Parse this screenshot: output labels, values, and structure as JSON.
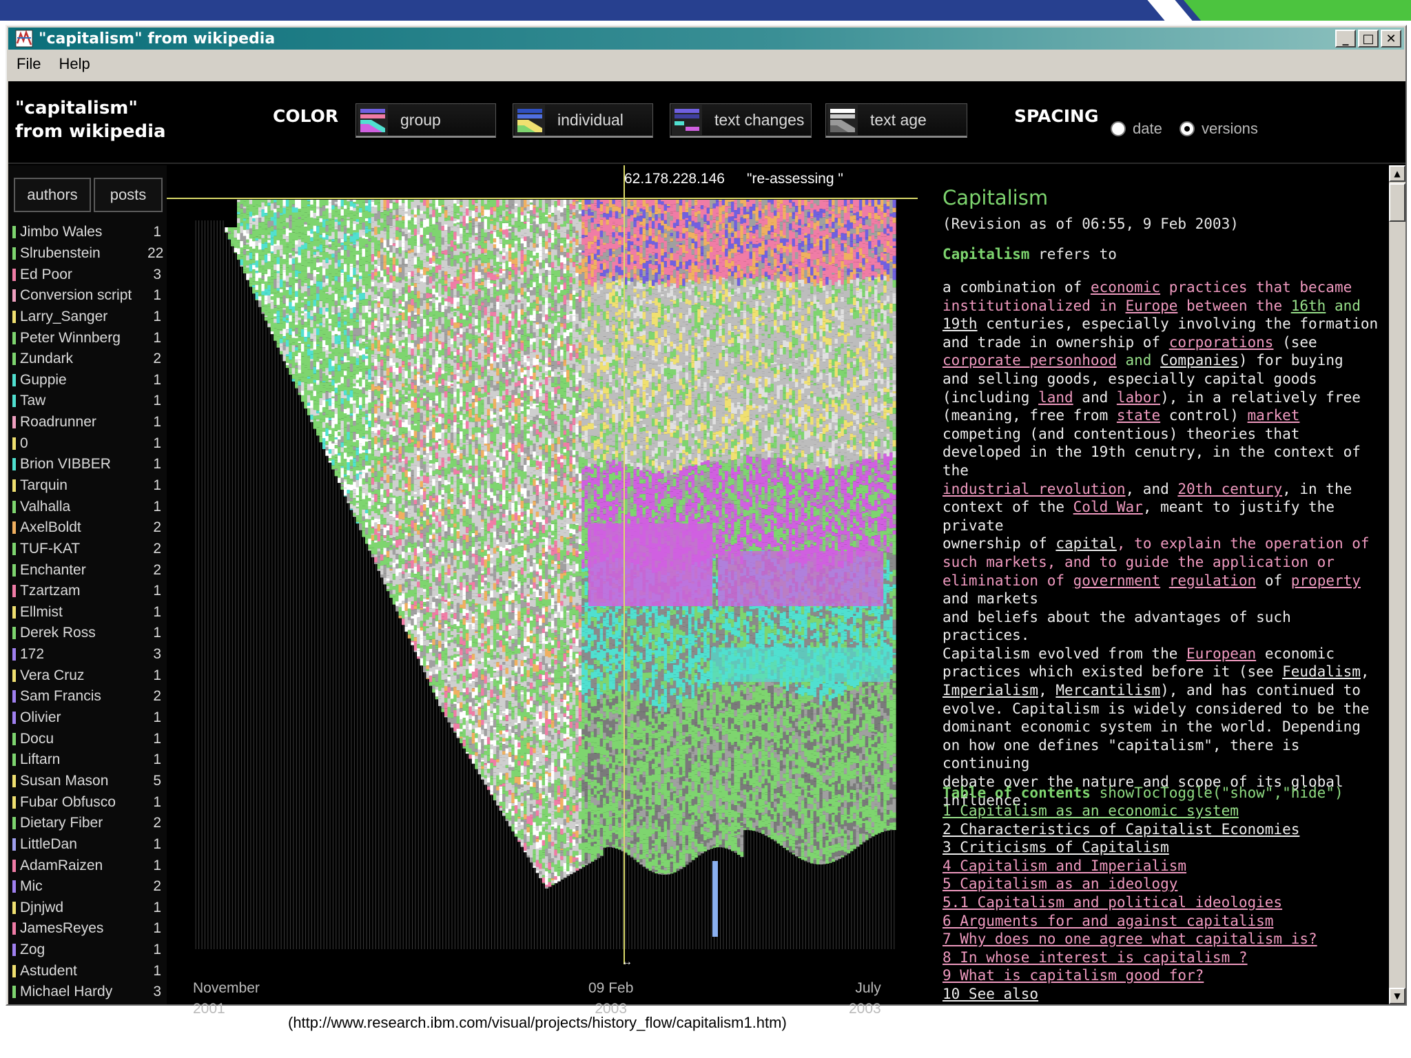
{
  "window": {
    "title": "\"capitalism\" from wikipedia",
    "menu": [
      "File",
      "Help"
    ],
    "buttons": {
      "minimize": "_",
      "maximize": "□",
      "close": "✕"
    }
  },
  "header": {
    "doc_title": "\"capitalism\"\nfrom wikipedia",
    "color_label": "COLOR",
    "color_buttons": [
      "group",
      "individual",
      "text changes",
      "text age"
    ],
    "spacing_label": "SPACING",
    "spacing_options": [
      "date",
      "versions"
    ],
    "spacing_selected": "versions"
  },
  "left_panel": {
    "tabs": [
      "authors",
      "posts"
    ],
    "authors": [
      {
        "name": "Jimbo Wales",
        "count": "1",
        "color": "#7ed56f"
      },
      {
        "name": "Slrubenstein",
        "count": "22",
        "color": "#7ed56f"
      },
      {
        "name": "Ed Poor",
        "count": "3",
        "color": "#f07ca6"
      },
      {
        "name": "Conversion script",
        "count": "1",
        "color": "#f0a0c0"
      },
      {
        "name": "Larry_Sanger",
        "count": "1",
        "color": "#f0e070"
      },
      {
        "name": "Peter Winnberg",
        "count": "1",
        "color": "#7ed56f"
      },
      {
        "name": "Zundark",
        "count": "2",
        "color": "#7ed56f"
      },
      {
        "name": "Guppie",
        "count": "1",
        "color": "#50e0d0"
      },
      {
        "name": "Taw",
        "count": "1",
        "color": "#50e0d0"
      },
      {
        "name": "Roadrunner",
        "count": "1",
        "color": "#f0a0c0"
      },
      {
        "name": "0",
        "count": "1",
        "color": "#f0e070"
      },
      {
        "name": "Brion VIBBER",
        "count": "1",
        "color": "#50e0d0"
      },
      {
        "name": "Tarquin",
        "count": "1",
        "color": "#f0e070"
      },
      {
        "name": "Valhalla",
        "count": "1",
        "color": "#7ed56f"
      },
      {
        "name": "AxelBoldt",
        "count": "2",
        "color": "#f0b060"
      },
      {
        "name": "TUF-KAT",
        "count": "2",
        "color": "#7ed56f"
      },
      {
        "name": "Enchanter",
        "count": "2",
        "color": "#7ed56f"
      },
      {
        "name": "Tzartzam",
        "count": "1",
        "color": "#f07ca6"
      },
      {
        "name": "Ellmist",
        "count": "1",
        "color": "#f0e070"
      },
      {
        "name": "Derek Ross",
        "count": "1",
        "color": "#7ed56f"
      },
      {
        "name": "172",
        "count": "3",
        "color": "#a080f0"
      },
      {
        "name": "Vera Cruz",
        "count": "1",
        "color": "#f0e070"
      },
      {
        "name": "Sam Francis",
        "count": "2",
        "color": "#a080f0"
      },
      {
        "name": "Olivier",
        "count": "1",
        "color": "#a080f0"
      },
      {
        "name": "Docu",
        "count": "1",
        "color": "#7ed56f"
      },
      {
        "name": "Liftarn",
        "count": "1",
        "color": "#7ed56f"
      },
      {
        "name": "Susan Mason",
        "count": "5",
        "color": "#f0e070"
      },
      {
        "name": "Fubar Obfusco",
        "count": "1",
        "color": "#f0e070"
      },
      {
        "name": "Dietary Fiber",
        "count": "2",
        "color": "#7ed56f"
      },
      {
        "name": "LittleDan",
        "count": "1",
        "color": "#a0a0f0"
      },
      {
        "name": "AdamRaizen",
        "count": "1",
        "color": "#f07ca6"
      },
      {
        "name": "Mic",
        "count": "2",
        "color": "#a080f0"
      },
      {
        "name": "Djnjwd",
        "count": "1",
        "color": "#f0e070"
      },
      {
        "name": "JamesReyes",
        "count": "1",
        "color": "#f07ca6"
      },
      {
        "name": "Zog",
        "count": "1",
        "color": "#a080f0"
      },
      {
        "name": "Astudent",
        "count": "1",
        "color": "#f0e070"
      },
      {
        "name": "Michael Hardy",
        "count": "3",
        "color": "#7ed56f"
      }
    ]
  },
  "viz": {
    "tooltip_author": "62.178.228.146",
    "tooltip_comment": "\"re-assessing \"",
    "axis_start": "November\n2001",
    "axis_mid": "09 Feb\n2003",
    "axis_end": "July\n2003",
    "marker": "↔"
  },
  "article": {
    "title": "Capitalism",
    "revision": "(Revision as of 06:55, 9 Feb 2003)",
    "intro_bold": "Capitalism",
    "intro_rest": " refers to",
    "body": [
      {
        "t": " a combination of ",
        "c": "w"
      },
      {
        "t": "economic",
        "c": "p",
        "link": true
      },
      {
        "t": " practices that became\ninstitutionalized in ",
        "c": "p"
      },
      {
        "t": "Europe",
        "c": "p",
        "link": true
      },
      {
        "t": " between the ",
        "c": "p"
      },
      {
        "t": "16th",
        "c": "g",
        "link": true
      },
      {
        "t": " and\n",
        "c": "g"
      },
      {
        "t": "19th",
        "c": "w",
        "link": true
      },
      {
        "t": " centuries, especially involving the formation\nand trade in ownership of ",
        "c": "w"
      },
      {
        "t": "corporations",
        "c": "p",
        "link": true
      },
      {
        "t": " (see\n",
        "c": "w"
      },
      {
        "t": "corporate personhood",
        "c": "p",
        "link": true
      },
      {
        "t": " and ",
        "c": "g"
      },
      {
        "t": "Companies",
        "c": "w",
        "link": true
      },
      {
        "t": ") for buying\nand selling goods, especially capital goods\n(including ",
        "c": "w"
      },
      {
        "t": "land",
        "c": "p",
        "link": true
      },
      {
        "t": " and ",
        "c": "w"
      },
      {
        "t": "labor",
        "c": "p",
        "link": true
      },
      {
        "t": "), in a relatively free\n(meaning, free from ",
        "c": "w"
      },
      {
        "t": "state",
        "c": "p",
        "link": true
      },
      {
        "t": " control) ",
        "c": "w"
      },
      {
        "t": "market",
        "c": "p",
        "link": true
      },
      {
        "t": "\n competing (and contentious) theories that\ndeveloped in the 19th cenutry, in the context of the\n",
        "c": "w"
      },
      {
        "t": "industrial revolution",
        "c": "p",
        "link": true
      },
      {
        "t": ", and ",
        "c": "w"
      },
      {
        "t": "20th century",
        "c": "p",
        "link": true
      },
      {
        "t": ", in the\ncontext of the ",
        "c": "w"
      },
      {
        "t": "Cold War",
        "c": "p",
        "link": true
      },
      {
        "t": ", meant to justify the private\nownership of ",
        "c": "w"
      },
      {
        "t": "capital",
        "c": "w",
        "link": true
      },
      {
        "t": ", to explain the operation of\nsuch markets, and to guide the application or\nelimination of ",
        "c": "p"
      },
      {
        "t": "government",
        "c": "p",
        "link": true
      },
      {
        "t": " ",
        "c": "p"
      },
      {
        "t": "regulation",
        "c": "p",
        "link": true
      },
      {
        "t": " of ",
        "c": "w"
      },
      {
        "t": "property",
        "c": "p",
        "link": true
      },
      {
        "t": "\nand markets\n and beliefs about the advantages of such practices.\nCapitalism evolved from the ",
        "c": "w"
      },
      {
        "t": "European",
        "c": "p",
        "link": true
      },
      {
        "t": " economic\npractices which existed before it (see ",
        "c": "w"
      },
      {
        "t": "Feudalism",
        "c": "w",
        "link": true
      },
      {
        "t": ",\n",
        "c": "w"
      },
      {
        "t": "Imperialism",
        "c": "w",
        "link": true
      },
      {
        "t": ", ",
        "c": "w"
      },
      {
        "t": "Mercantilism",
        "c": "w",
        "link": true
      },
      {
        "t": "), and has continued to\nevolve. Capitalism is widely considered to be the\ndominant economic system in the world.  Depending\non how one defines \"capitalism\", there is continuing\ndebate over the nature and scope of its global\ninfluence.",
        "c": "w"
      }
    ],
    "toc_bold": "Table of contents",
    "toc_rest": " showTocToggle(\"show\",\"hide\")",
    "toc": [
      {
        "t": "1  Capitalism as an economic system ",
        "c": "g"
      },
      {
        "t": "2  Characteristics of Capitalist Economies ",
        "c": "w"
      },
      {
        "t": "3  Criticisms of Capitalism ",
        "c": "w"
      },
      {
        "t": "4 Capitalism and Imperialism ",
        "c": "p"
      },
      {
        "t": "5  Capitalism as an ideology ",
        "c": "p"
      },
      {
        "t": "5.1  Capitalism and political ideologies ",
        "c": "p"
      },
      {
        "t": "6  Arguments for and against capitalism ",
        "c": "p"
      },
      {
        "t": "7  Why does no one agree what capitalism is? ",
        "c": "p"
      },
      {
        "t": "8  In whose interest is capitalism ? ",
        "c": "p"
      },
      {
        "t": "9  What is capitalism good for? ",
        "c": "p"
      },
      {
        "t": "10  See also ",
        "c": "w"
      }
    ]
  },
  "caption": "(http://www.research.ibm.com/visual/projects/history_flow/capitalism1.htm)",
  "colors": {
    "green": "#7ed56f",
    "pink": "#f07ca6",
    "magenta": "#d060e0",
    "cyan": "#50e0d0",
    "purple": "#7060e0",
    "orange": "#f0b060",
    "yellow": "#f0e070",
    "gray": "#a0a0a0",
    "title_green": "#0b6f7a"
  }
}
